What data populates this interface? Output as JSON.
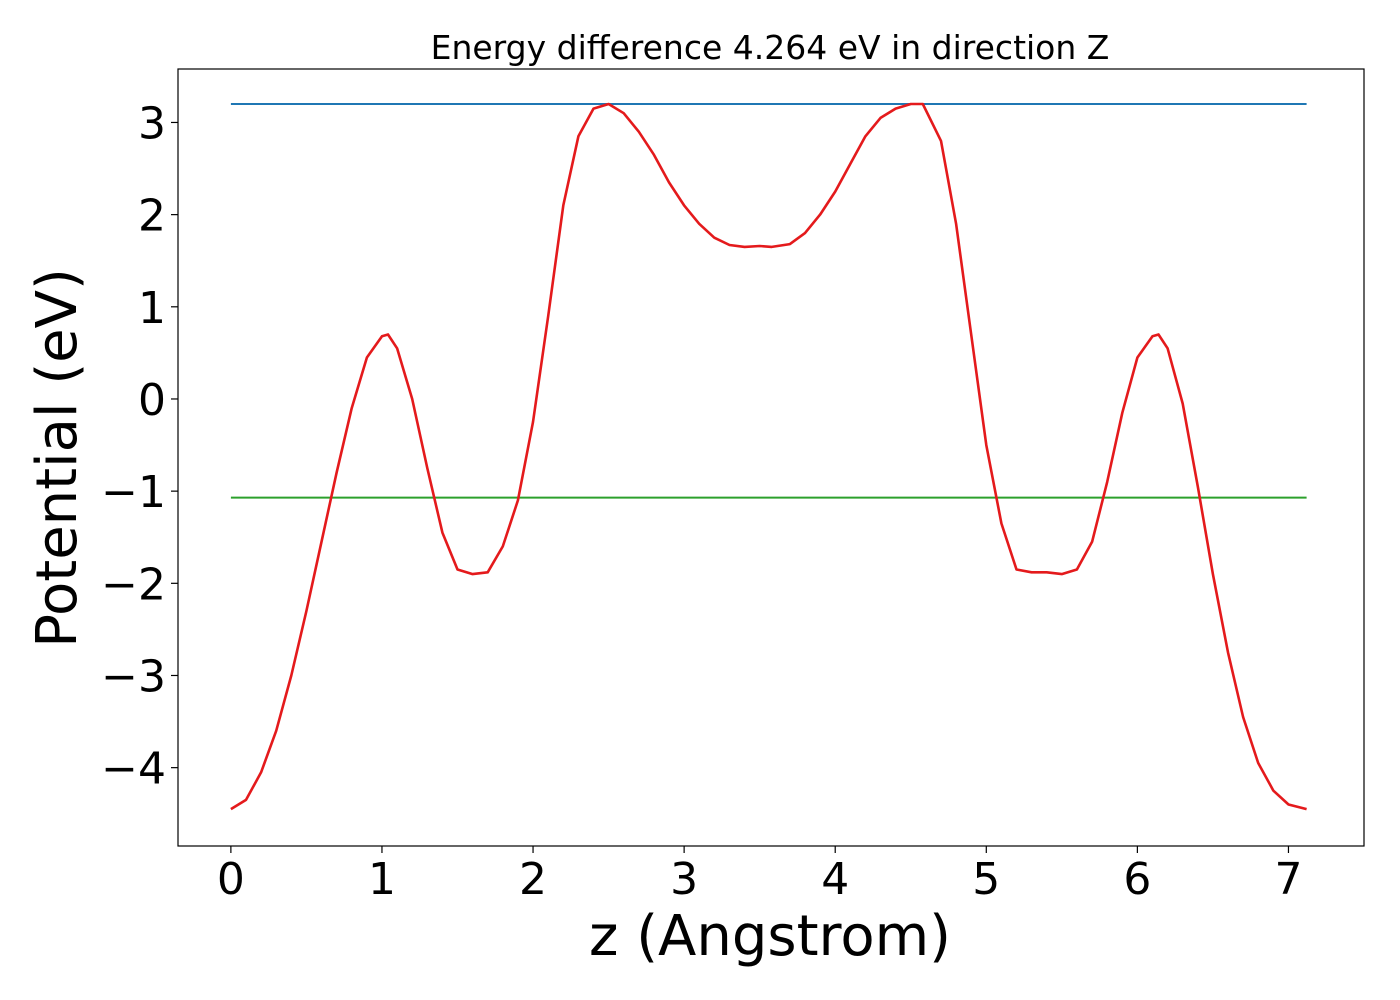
{
  "chart_data": {
    "type": "line",
    "title": "Energy difference 4.264 eV in direction Z",
    "xlabel": "z (Angstrom)",
    "ylabel": "Potential (eV)",
    "xlim": [
      -0.35,
      7.5
    ],
    "ylim": [
      -4.85,
      3.58
    ],
    "xticks": [
      0,
      1,
      2,
      3,
      4,
      5,
      6,
      7
    ],
    "yticks": [
      -4,
      -3,
      -2,
      -1,
      0,
      1,
      2,
      3
    ],
    "grid": false,
    "series": [
      {
        "color": "#1f77b4",
        "x": [
          0,
          7.12
        ],
        "y": [
          3.2,
          3.2
        ]
      },
      {
        "color": "#2ca02c",
        "x": [
          0,
          7.12
        ],
        "y": [
          -1.07,
          -1.07
        ]
      },
      {
        "color": "#e41a1c",
        "x": [
          0.0,
          0.1,
          0.2,
          0.3,
          0.4,
          0.5,
          0.6,
          0.7,
          0.8,
          0.9,
          1.0,
          1.04,
          1.1,
          1.2,
          1.3,
          1.4,
          1.5,
          1.6,
          1.7,
          1.8,
          1.9,
          2.0,
          2.1,
          2.2,
          2.3,
          2.4,
          2.5,
          2.6,
          2.7,
          2.8,
          2.9,
          3.0,
          3.1,
          3.2,
          3.3,
          3.4,
          3.5,
          3.58,
          3.7,
          3.8,
          3.9,
          4.0,
          4.1,
          4.2,
          4.3,
          4.4,
          4.5,
          4.58,
          4.7,
          4.8,
          4.9,
          5.0,
          5.1,
          5.2,
          5.3,
          5.4,
          5.5,
          5.6,
          5.7,
          5.8,
          5.9,
          6.0,
          6.1,
          6.14,
          6.2,
          6.3,
          6.4,
          6.5,
          6.6,
          6.7,
          6.8,
          6.9,
          7.0,
          7.12
        ],
        "y": [
          -4.45,
          -4.35,
          -4.05,
          -3.6,
          -3.0,
          -2.3,
          -1.55,
          -0.8,
          -0.1,
          0.45,
          0.68,
          0.7,
          0.55,
          0.0,
          -0.75,
          -1.45,
          -1.85,
          -1.9,
          -1.88,
          -1.6,
          -1.1,
          -0.25,
          0.9,
          2.1,
          2.85,
          3.15,
          3.2,
          3.1,
          2.9,
          2.65,
          2.35,
          2.1,
          1.9,
          1.75,
          1.67,
          1.65,
          1.66,
          1.65,
          1.68,
          1.8,
          2.0,
          2.25,
          2.55,
          2.85,
          3.05,
          3.15,
          3.2,
          3.2,
          2.8,
          1.9,
          0.7,
          -0.5,
          -1.35,
          -1.85,
          -1.88,
          -1.88,
          -1.9,
          -1.85,
          -1.55,
          -0.9,
          -0.15,
          0.45,
          0.68,
          0.7,
          0.55,
          -0.05,
          -0.95,
          -1.9,
          -2.75,
          -3.45,
          -3.95,
          -4.25,
          -4.4,
          -4.45
        ]
      }
    ]
  }
}
